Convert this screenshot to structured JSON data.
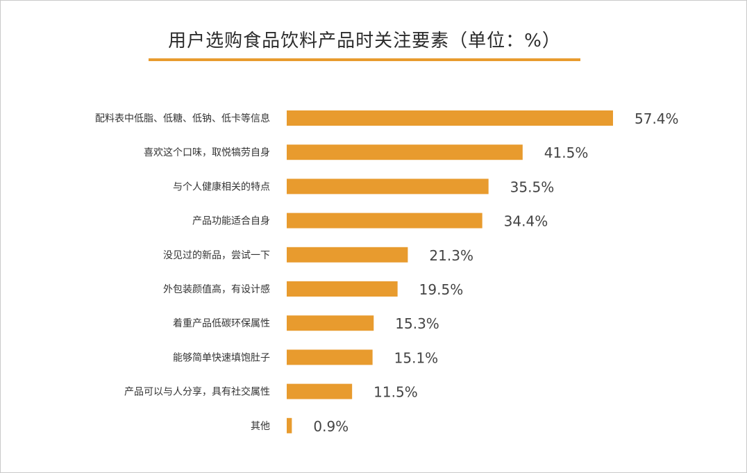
{
  "chart_data": {
    "type": "bar",
    "orientation": "horizontal",
    "title": "用户选购食品饮料产品时关注要素（单位：%）",
    "categories": [
      "配料表中低脂、低糖、低钠、低卡等信息",
      "喜欢这个口味，取悦犒劳自身",
      "与个人健康相关的特点",
      "产品功能适合自身",
      "没见过的新品，尝试一下",
      "外包装颜值高，有设计感",
      "着重产品低碳环保属性",
      "能够简单快速填饱肚子",
      "产品可以与人分享，具有社交属性",
      "其他"
    ],
    "values": [
      57.4,
      41.5,
      35.5,
      34.4,
      21.3,
      19.5,
      15.3,
      15.1,
      11.5,
      0.9
    ],
    "value_labels": [
      "57.4%",
      "41.5%",
      "35.5%",
      "34.4%",
      "21.3%",
      "19.5%",
      "15.3%",
      "15.1%",
      "11.5%",
      "0.9%"
    ],
    "bar_color": "#E89B2E",
    "grid": false,
    "legend": "none"
  }
}
